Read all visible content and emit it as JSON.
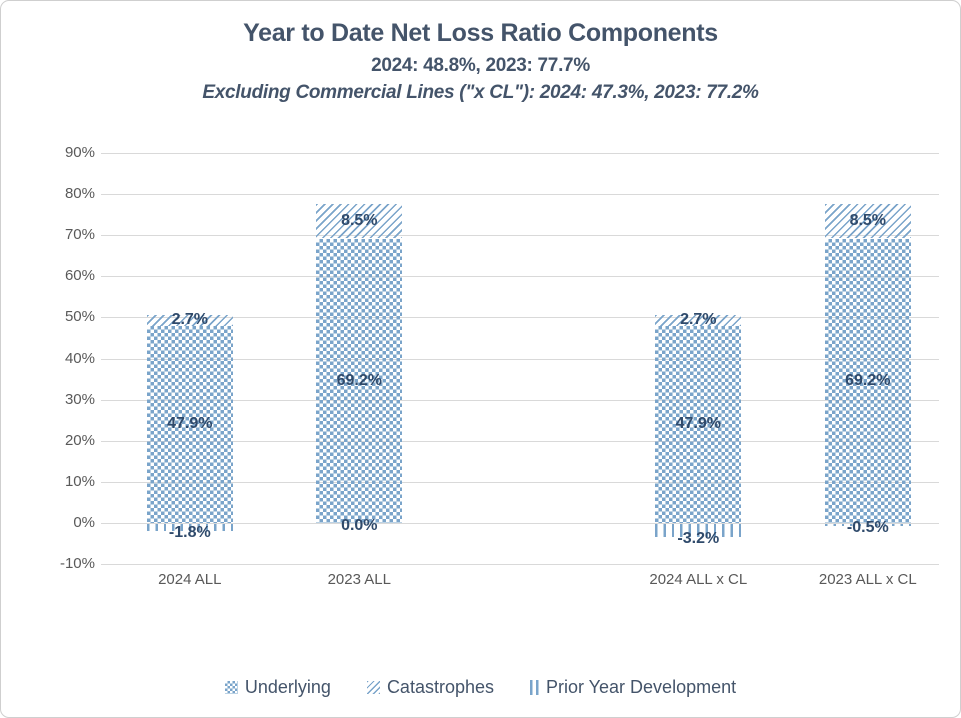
{
  "chart_data": {
    "type": "bar",
    "stacked": true,
    "title": "Year to Date Net Loss Ratio Components",
    "subtitle": "2024: 48.8%, 2023: 77.7%",
    "subtitle2": "Excluding Commercial Lines (\"x CL\"): 2024: 47.3%, 2023: 77.2%",
    "categories": [
      "2024 ALL",
      "2023 ALL",
      "2024 ALL x CL",
      "2023 ALL x CL"
    ],
    "series": [
      {
        "name": "Underlying",
        "pattern": "dots",
        "values": [
          47.9,
          69.2,
          47.9,
          69.2
        ],
        "labels": [
          "47.9%",
          "69.2%",
          "47.9%",
          "69.2%"
        ]
      },
      {
        "name": "Catastrophes",
        "pattern": "diagonal-hatch",
        "values": [
          2.7,
          8.5,
          2.7,
          8.5
        ],
        "labels": [
          "2.7%",
          "8.5%",
          "2.7%",
          "8.5%"
        ]
      },
      {
        "name": "Prior Year Development",
        "pattern": "vertical-lines",
        "values": [
          -1.8,
          0.0,
          -3.2,
          -0.5
        ],
        "labels": [
          "-1.8%",
          "0.0%",
          "-3.2%",
          "-0.5%"
        ]
      }
    ],
    "totals": {
      "2024 ALL": 48.8,
      "2023 ALL": 77.7,
      "2024 ALL x CL": 47.3,
      "2023 ALL x CL": 77.2
    },
    "ylim": [
      -10,
      90
    ],
    "ytick_step": 10,
    "ytick_labels": [
      "90%",
      "80%",
      "70%",
      "60%",
      "50%",
      "40%",
      "30%",
      "20%",
      "10%",
      "0%",
      "-10%"
    ],
    "grid": true,
    "legend_position": "bottom",
    "colors": {
      "pattern_blue": "#7AA4CA",
      "label_navy": "#2F4A6B",
      "axis_gray": "#595959",
      "title_slate": "#44546A",
      "gridline": "#D9D9D9"
    }
  }
}
